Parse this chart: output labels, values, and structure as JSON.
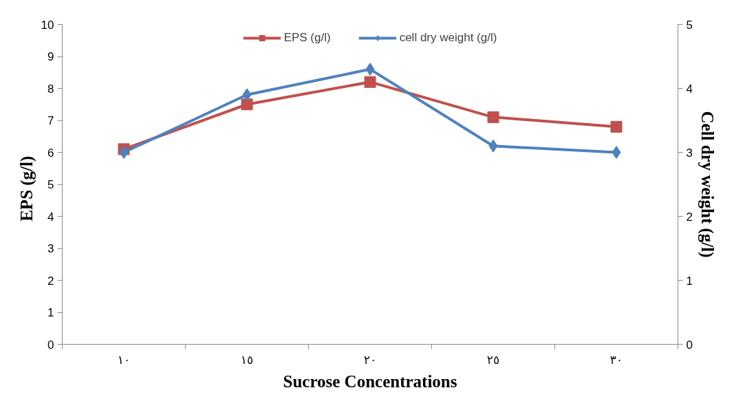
{
  "chart_data": {
    "type": "line",
    "xlabel": "Sucrose Concentrations",
    "ylabel": "EPS   (g/l)",
    "y2label": "Cell dry weight (g/l)",
    "categories": [
      "١٠",
      "١٥",
      "٢٠",
      "٢٥",
      "٣٠"
    ],
    "series": [
      {
        "name": "EPS (g/l)",
        "color": "#c0504d",
        "marker": "square",
        "values": [
          6.1,
          7.5,
          8.2,
          7.1,
          6.8
        ]
      },
      {
        "name": "cell dry weight (g/l)",
        "color": "#4f81bd",
        "marker": "diamond",
        "axis": "y2",
        "values": [
          3.0,
          3.9,
          4.3,
          3.1,
          3.0
        ]
      }
    ],
    "ylim": [
      0,
      10
    ],
    "yticks": [
      0,
      1,
      2,
      3,
      4,
      5,
      6,
      7,
      8,
      9,
      10
    ],
    "y2lim": [
      0,
      5
    ],
    "y2ticks": [
      0,
      1,
      2,
      3,
      4,
      5
    ],
    "grid": false,
    "legend": "top"
  }
}
